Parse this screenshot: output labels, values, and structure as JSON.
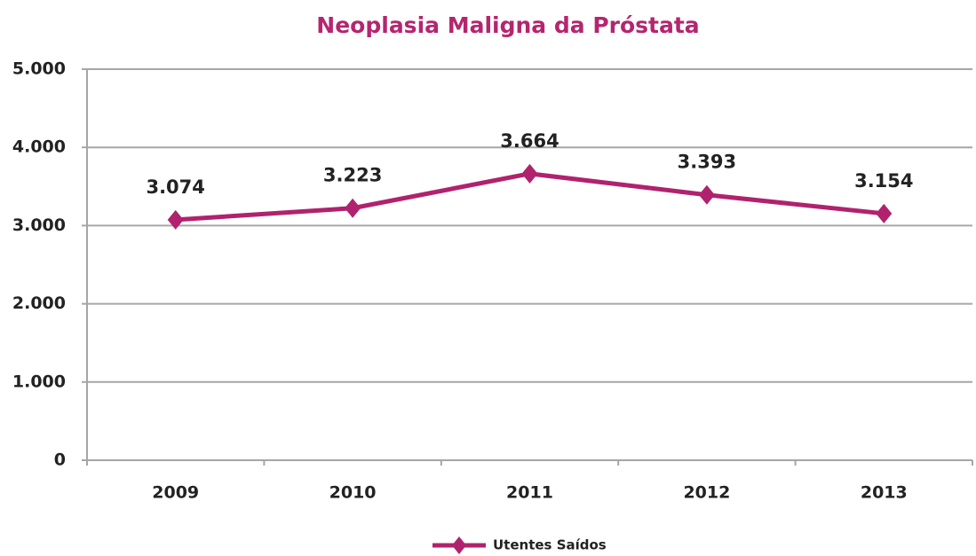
{
  "chart_data": {
    "type": "line",
    "title": "Neoplasia Maligna da Próstata",
    "categories": [
      "2009",
      "2010",
      "2011",
      "2012",
      "2013"
    ],
    "series": [
      {
        "name": "Utentes Saídos",
        "color": "#b0226e",
        "values": [
          3074,
          3223,
          3664,
          3393,
          3154
        ],
        "value_labels": [
          "3.074",
          "3.223",
          "3.664",
          "3.393",
          "3.154"
        ]
      }
    ],
    "ylim": [
      0,
      5000
    ],
    "yticks": [
      0,
      {
        "value": 1000,
        "label": "1.000"
      },
      {
        "value": 2000,
        "label": "2.000"
      },
      {
        "value": 3000,
        "label": "3.000"
      },
      {
        "value": 4000,
        "label": "4.000"
      },
      {
        "value": 5000,
        "label": "5.000"
      }
    ],
    "grid": true,
    "legend": "bottom"
  }
}
